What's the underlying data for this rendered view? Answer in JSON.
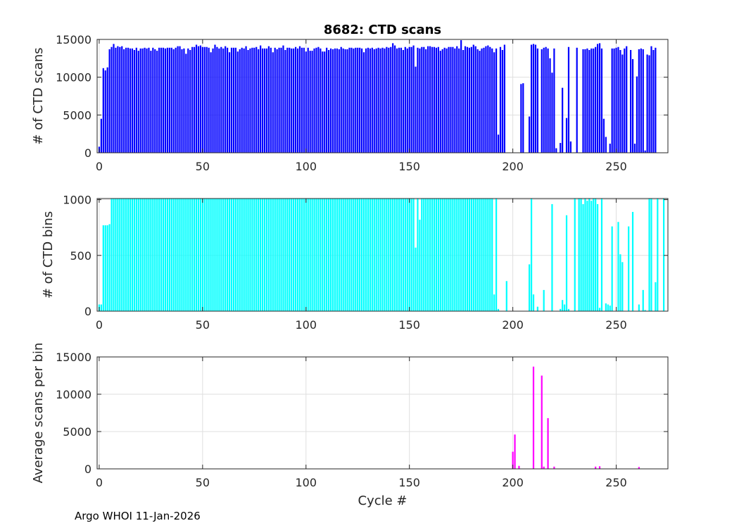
{
  "footer": "Argo WHOI 11-Jan-2026",
  "chart_data": [
    {
      "type": "bar",
      "title": "8682: CTD scans",
      "xlabel": "",
      "ylabel": "# of CTD scans",
      "xlim": [
        -1,
        275
      ],
      "ylim": [
        0,
        15000
      ],
      "xticks": [
        0,
        50,
        100,
        150,
        200,
        250
      ],
      "yticks": [
        0,
        5000,
        10000,
        15000
      ],
      "color": "#0000ff",
      "grid": true,
      "x_start": 0,
      "values": [
        800,
        4500,
        11200,
        10900,
        11300,
        13700,
        14000,
        14400,
        13900,
        14100,
        14000,
        14100,
        13700,
        13900,
        13900,
        13800,
        13800,
        13600,
        13900,
        13500,
        13800,
        13800,
        13900,
        13800,
        13900,
        13500,
        13900,
        13700,
        13500,
        13900,
        13900,
        13900,
        13800,
        13900,
        13900,
        13900,
        13700,
        13900,
        14100,
        14100,
        13700,
        13800,
        13100,
        13800,
        13600,
        14000,
        14000,
        14300,
        14100,
        14200,
        14000,
        14000,
        14000,
        13900,
        13300,
        13800,
        14300,
        14000,
        13800,
        14000,
        13800,
        14100,
        13900,
        13300,
        13900,
        13900,
        13900,
        13400,
        13700,
        13900,
        13800,
        14100,
        13600,
        13800,
        13900,
        13900,
        14000,
        13700,
        14200,
        13800,
        13800,
        13800,
        14100,
        13900,
        13300,
        13900,
        13700,
        13900,
        13900,
        14200,
        13600,
        13900,
        13900,
        13800,
        13800,
        14000,
        13800,
        14100,
        13900,
        13900,
        13400,
        13900,
        13500,
        13500,
        13800,
        13900,
        14000,
        13800,
        13400,
        13400,
        13900,
        13600,
        13800,
        13700,
        13800,
        13800,
        13700,
        14000,
        13800,
        13700,
        13700,
        13900,
        13900,
        13800,
        13900,
        13900,
        13900,
        13800,
        13300,
        13800,
        13900,
        13800,
        13900,
        13700,
        13800,
        13900,
        13800,
        13900,
        13800,
        14000,
        13900,
        14000,
        14500,
        14200,
        13800,
        13900,
        13900,
        13600,
        14000,
        13800,
        14000,
        14000,
        14200,
        11400,
        13900,
        13800,
        14000,
        14000,
        13700,
        14100,
        14100,
        14000,
        14000,
        13900,
        14000,
        13500,
        13700,
        13900,
        13800,
        14000,
        14000,
        14000,
        13800,
        14100,
        13800,
        14900,
        13600,
        14100,
        14000,
        13900,
        14000,
        14300,
        14100,
        13700,
        13500,
        13800,
        13900,
        14100,
        14200,
        14000,
        13800,
        13300,
        13800,
        2400,
        14000,
        13600,
        14300,
        0,
        0,
        0,
        0,
        0,
        0,
        0,
        9100,
        9200,
        0,
        0,
        4800,
        14300,
        14400,
        14300,
        13800,
        0,
        13700,
        13900,
        14000,
        13800,
        12500,
        10600,
        13800,
        600,
        0,
        1300,
        8600,
        0,
        4600,
        14000,
        1500,
        0,
        0,
        13900,
        0,
        0,
        13700,
        13700,
        13800,
        13600,
        13800,
        13800,
        14000,
        14400,
        14500,
        13800,
        4500,
        2100,
        0,
        1200,
        13800,
        13800,
        13900,
        14000,
        13600,
        13000,
        13800,
        14100,
        0,
        13600,
        12400,
        1200,
        10100,
        13700,
        13800,
        13700,
        300,
        13000,
        12900,
        14100,
        13600,
        13900
      ]
    },
    {
      "type": "bar",
      "title": "",
      "xlabel": "",
      "ylabel": "# of CTD bins",
      "xlim": [
        -1,
        275
      ],
      "ylim": [
        0,
        1010
      ],
      "xticks": [
        0,
        50,
        100,
        150,
        200,
        250
      ],
      "yticks": [
        0,
        500,
        1000
      ],
      "color": "#00ffff",
      "grid": true,
      "x_start": 0,
      "values": [
        60,
        60,
        770,
        770,
        770,
        780,
        1010,
        1010,
        1010,
        1010,
        1010,
        1010,
        1010,
        1010,
        1010,
        1010,
        1010,
        1010,
        1010,
        1010,
        1010,
        1010,
        1010,
        1010,
        1010,
        1010,
        1010,
        1010,
        1010,
        1010,
        1010,
        1010,
        1010,
        1010,
        1010,
        1010,
        1010,
        1010,
        1010,
        1010,
        1010,
        1010,
        1010,
        1010,
        1010,
        1010,
        1010,
        1010,
        1010,
        1010,
        1010,
        1010,
        1010,
        1010,
        1010,
        1010,
        1010,
        1010,
        1010,
        1010,
        1010,
        1010,
        1010,
        1010,
        1010,
        1010,
        1010,
        1010,
        1010,
        1010,
        1010,
        1010,
        1010,
        1010,
        1010,
        1010,
        1010,
        1010,
        1010,
        1010,
        1010,
        1010,
        1010,
        1010,
        1010,
        1010,
        1010,
        1010,
        1010,
        1010,
        1010,
        1010,
        1010,
        1010,
        1010,
        1010,
        1010,
        1010,
        1010,
        1010,
        1010,
        1010,
        1010,
        1010,
        1010,
        1010,
        1010,
        1010,
        1010,
        1010,
        1010,
        1010,
        1010,
        1010,
        1010,
        1010,
        1010,
        1010,
        1010,
        1010,
        1010,
        1010,
        1010,
        1010,
        1010,
        1010,
        1010,
        1010,
        1010,
        1010,
        1010,
        1010,
        1010,
        1010,
        1010,
        1010,
        1010,
        1010,
        1010,
        1010,
        1010,
        1010,
        1010,
        1010,
        1010,
        1010,
        1010,
        1010,
        1010,
        1010,
        1010,
        1010,
        1010,
        570,
        1010,
        820,
        1010,
        1010,
        1010,
        1010,
        1010,
        1010,
        1010,
        1010,
        1010,
        1010,
        1010,
        1010,
        1010,
        1010,
        1010,
        1010,
        1010,
        1010,
        1010,
        1010,
        1010,
        1010,
        1010,
        1010,
        1010,
        1010,
        1010,
        1010,
        1010,
        1010,
        1010,
        1010,
        1010,
        1010,
        1010,
        150,
        1010,
        20,
        0,
        0,
        0,
        270,
        0,
        0,
        0,
        0,
        0,
        0,
        0,
        0,
        0,
        0,
        420,
        1010,
        150,
        0,
        40,
        0,
        0,
        190,
        0,
        0,
        0,
        960,
        0,
        0,
        0,
        20,
        100,
        60,
        860,
        20,
        0,
        0,
        1010,
        0,
        1010,
        1010,
        960,
        1010,
        990,
        1010,
        990,
        1010,
        1010,
        960,
        30,
        1010,
        0,
        70,
        60,
        50,
        760,
        0,
        0,
        800,
        510,
        440,
        0,
        0,
        760,
        0,
        890,
        0,
        0,
        60,
        0,
        190,
        10,
        0,
        1010,
        1010,
        0,
        260,
        1010,
        0,
        0,
        1010
      ]
    },
    {
      "type": "bar",
      "title": "",
      "xlabel": "Cycle #",
      "ylabel": "Average scans per bin",
      "xlim": [
        -1,
        275
      ],
      "ylim": [
        0,
        15000
      ],
      "xticks": [
        0,
        50,
        100,
        150,
        200,
        250
      ],
      "yticks": [
        0,
        5000,
        10000,
        15000
      ],
      "color": "#ff00ff",
      "grid": true,
      "points": [
        {
          "x": 200,
          "y": 2300
        },
        {
          "x": 201,
          "y": 4600
        },
        {
          "x": 203,
          "y": 400
        },
        {
          "x": 210,
          "y": 13700
        },
        {
          "x": 214,
          "y": 12500
        },
        {
          "x": 215,
          "y": 300
        },
        {
          "x": 217,
          "y": 6800
        },
        {
          "x": 220,
          "y": 300
        },
        {
          "x": 240,
          "y": 300
        },
        {
          "x": 242,
          "y": 350
        },
        {
          "x": 261,
          "y": 250
        }
      ]
    }
  ]
}
